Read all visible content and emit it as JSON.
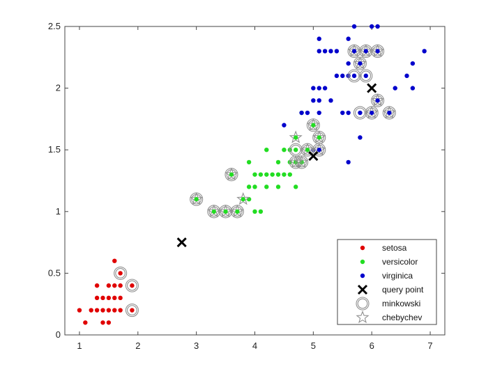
{
  "chart_data": {
    "type": "scatter",
    "title": "",
    "xlabel": "",
    "ylabel": "",
    "xlim": [
      0.75,
      7.25
    ],
    "ylim": [
      0,
      2.5
    ],
    "xticks": [
      "1",
      "2",
      "3",
      "4",
      "5",
      "6",
      "7"
    ],
    "yticks": [
      "0",
      "0.5",
      "1",
      "1.5",
      "2",
      "2.5"
    ],
    "grid": false,
    "legend_position": "bottom-right",
    "colors": {
      "setosa": "#e00000",
      "versicolor": "#22dd22",
      "virginica": "#0000cc",
      "query": "#000000",
      "ring": "#909090",
      "axis": "#444444"
    },
    "series": [
      {
        "name": "setosa",
        "marker": "dot",
        "points": [
          [
            1.0,
            0.2
          ],
          [
            1.1,
            0.1
          ],
          [
            1.2,
            0.2
          ],
          [
            1.3,
            0.2
          ],
          [
            1.3,
            0.3
          ],
          [
            1.3,
            0.4
          ],
          [
            1.4,
            0.2
          ],
          [
            1.4,
            0.3
          ],
          [
            1.4,
            0.1
          ],
          [
            1.5,
            0.2
          ],
          [
            1.5,
            0.4
          ],
          [
            1.5,
            0.3
          ],
          [
            1.5,
            0.1
          ],
          [
            1.6,
            0.2
          ],
          [
            1.6,
            0.4
          ],
          [
            1.6,
            0.6
          ],
          [
            1.6,
            0.3
          ],
          [
            1.7,
            0.2
          ],
          [
            1.7,
            0.4
          ],
          [
            1.7,
            0.3
          ],
          [
            1.7,
            0.5
          ],
          [
            1.9,
            0.2
          ],
          [
            1.9,
            0.4
          ]
        ]
      },
      {
        "name": "versicolor",
        "marker": "dot",
        "points": [
          [
            3.0,
            1.1
          ],
          [
            3.3,
            1.0
          ],
          [
            3.5,
            1.0
          ],
          [
            3.6,
            1.3
          ],
          [
            3.7,
            1.0
          ],
          [
            3.8,
            1.1
          ],
          [
            3.9,
            1.1
          ],
          [
            3.9,
            1.2
          ],
          [
            3.9,
            1.4
          ],
          [
            4.0,
            1.0
          ],
          [
            4.0,
            1.2
          ],
          [
            4.0,
            1.3
          ],
          [
            4.1,
            1.0
          ],
          [
            4.1,
            1.3
          ],
          [
            4.2,
            1.2
          ],
          [
            4.2,
            1.3
          ],
          [
            4.2,
            1.5
          ],
          [
            4.3,
            1.3
          ],
          [
            4.4,
            1.2
          ],
          [
            4.4,
            1.3
          ],
          [
            4.4,
            1.4
          ],
          [
            4.5,
            1.3
          ],
          [
            4.5,
            1.5
          ],
          [
            4.6,
            1.3
          ],
          [
            4.6,
            1.4
          ],
          [
            4.6,
            1.5
          ],
          [
            4.7,
            1.2
          ],
          [
            4.7,
            1.4
          ],
          [
            4.7,
            1.5
          ],
          [
            4.7,
            1.6
          ],
          [
            4.8,
            1.4
          ],
          [
            4.8,
            1.8
          ],
          [
            4.9,
            1.5
          ],
          [
            5.0,
            1.7
          ],
          [
            5.1,
            1.6
          ]
        ]
      },
      {
        "name": "virginica",
        "marker": "dot",
        "points": [
          [
            4.5,
            1.7
          ],
          [
            4.8,
            1.8
          ],
          [
            4.9,
            1.8
          ],
          [
            5.0,
            1.5
          ],
          [
            5.0,
            1.9
          ],
          [
            5.0,
            2.0
          ],
          [
            5.1,
            1.5
          ],
          [
            5.1,
            1.8
          ],
          [
            5.1,
            1.9
          ],
          [
            5.1,
            2.0
          ],
          [
            5.1,
            2.3
          ],
          [
            5.1,
            2.4
          ],
          [
            5.2,
            2.0
          ],
          [
            5.2,
            2.3
          ],
          [
            5.3,
            1.9
          ],
          [
            5.3,
            2.3
          ],
          [
            5.4,
            2.1
          ],
          [
            5.4,
            2.3
          ],
          [
            5.5,
            1.8
          ],
          [
            5.5,
            2.1
          ],
          [
            5.6,
            1.4
          ],
          [
            5.6,
            1.8
          ],
          [
            5.6,
            2.1
          ],
          [
            5.6,
            2.2
          ],
          [
            5.6,
            2.4
          ],
          [
            5.7,
            2.1
          ],
          [
            5.7,
            2.3
          ],
          [
            5.7,
            2.5
          ],
          [
            5.8,
            1.6
          ],
          [
            5.8,
            1.8
          ],
          [
            5.8,
            2.2
          ],
          [
            5.9,
            2.1
          ],
          [
            5.9,
            2.3
          ],
          [
            6.0,
            1.8
          ],
          [
            6.0,
            2.5
          ],
          [
            6.1,
            1.9
          ],
          [
            6.1,
            2.3
          ],
          [
            6.1,
            2.5
          ],
          [
            6.3,
            1.8
          ],
          [
            6.4,
            2.0
          ],
          [
            6.6,
            2.1
          ],
          [
            6.7,
            2.0
          ],
          [
            6.7,
            2.2
          ],
          [
            6.9,
            2.3
          ]
        ]
      },
      {
        "name": "query point",
        "marker": "x",
        "points": [
          [
            2.75,
            0.75
          ],
          [
            5.0,
            1.45
          ],
          [
            6.0,
            2.0
          ]
        ]
      },
      {
        "name": "minkowski",
        "marker": "ring",
        "points": [
          [
            1.7,
            0.5
          ],
          [
            1.9,
            0.4
          ],
          [
            1.9,
            0.2
          ],
          [
            3.0,
            1.1
          ],
          [
            3.3,
            1.0
          ],
          [
            3.5,
            1.0
          ],
          [
            3.6,
            1.3
          ],
          [
            3.7,
            1.0
          ],
          [
            4.7,
            1.4
          ],
          [
            4.8,
            1.4
          ],
          [
            4.7,
            1.5
          ],
          [
            4.9,
            1.5
          ],
          [
            5.0,
            1.7
          ],
          [
            5.1,
            1.6
          ],
          [
            5.1,
            1.5
          ],
          [
            5.7,
            2.3
          ],
          [
            5.9,
            2.3
          ],
          [
            6.1,
            2.3
          ],
          [
            5.8,
            2.2
          ],
          [
            5.7,
            2.1
          ],
          [
            5.9,
            2.1
          ],
          [
            6.1,
            1.9
          ],
          [
            5.8,
            1.8
          ],
          [
            6.0,
            1.8
          ],
          [
            6.3,
            1.8
          ]
        ]
      },
      {
        "name": "chebychev",
        "marker": "star",
        "points": [
          [
            3.0,
            1.1
          ],
          [
            3.3,
            1.0
          ],
          [
            3.5,
            1.0
          ],
          [
            3.6,
            1.3
          ],
          [
            3.7,
            1.0
          ],
          [
            3.8,
            1.1
          ],
          [
            4.7,
            1.6
          ],
          [
            4.9,
            1.5
          ],
          [
            5.0,
            1.7
          ],
          [
            5.1,
            1.6
          ],
          [
            5.1,
            1.5
          ],
          [
            4.8,
            1.4
          ],
          [
            4.7,
            1.4
          ],
          [
            5.8,
            2.2
          ],
          [
            6.1,
            1.9
          ],
          [
            6.0,
            1.8
          ],
          [
            5.7,
            2.3
          ],
          [
            5.9,
            2.3
          ],
          [
            6.1,
            2.3
          ],
          [
            6.3,
            1.8
          ]
        ]
      }
    ]
  }
}
